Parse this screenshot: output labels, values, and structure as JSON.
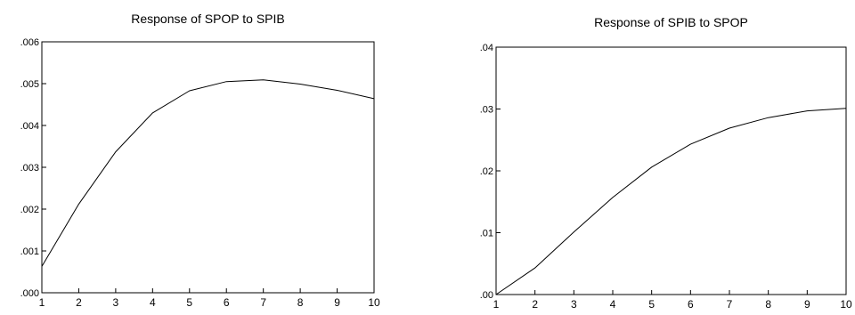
{
  "chart_data": [
    {
      "type": "line",
      "title": "Response of SPOP to SPIB",
      "xlabel": "",
      "ylabel": "",
      "x": [
        1,
        2,
        3,
        4,
        5,
        6,
        7,
        8,
        9,
        10
      ],
      "xticks": [
        "1",
        "2",
        "3",
        "4",
        "5",
        "6",
        "7",
        "8",
        "9",
        "10"
      ],
      "yticks": [
        ".000",
        ".001",
        ".002",
        ".003",
        ".004",
        ".005",
        ".006"
      ],
      "ylim": [
        0,
        0.006
      ],
      "grid": false,
      "series": [
        {
          "values": [
            0.00063,
            0.00212,
            0.00337,
            0.0043,
            0.00483,
            0.00505,
            0.00509,
            0.00499,
            0.00484,
            0.00464
          ]
        }
      ],
      "line_color": "#000000"
    },
    {
      "type": "line",
      "title": "Response of SPIB to SPOP",
      "xlabel": "",
      "ylabel": "",
      "x": [
        1,
        2,
        3,
        4,
        5,
        6,
        7,
        8,
        9,
        10
      ],
      "xticks": [
        "1",
        "2",
        "3",
        "4",
        "5",
        "6",
        "7",
        "8",
        "9",
        "10"
      ],
      "yticks": [
        ".00",
        ".01",
        ".02",
        ".03",
        ".04"
      ],
      "ylim": [
        0,
        0.04
      ],
      "grid": false,
      "series": [
        {
          "values": [
            0.0,
            0.0043,
            0.0101,
            0.0157,
            0.0206,
            0.0243,
            0.0269,
            0.0286,
            0.0297,
            0.0301
          ]
        }
      ],
      "line_color": "#000000"
    }
  ]
}
